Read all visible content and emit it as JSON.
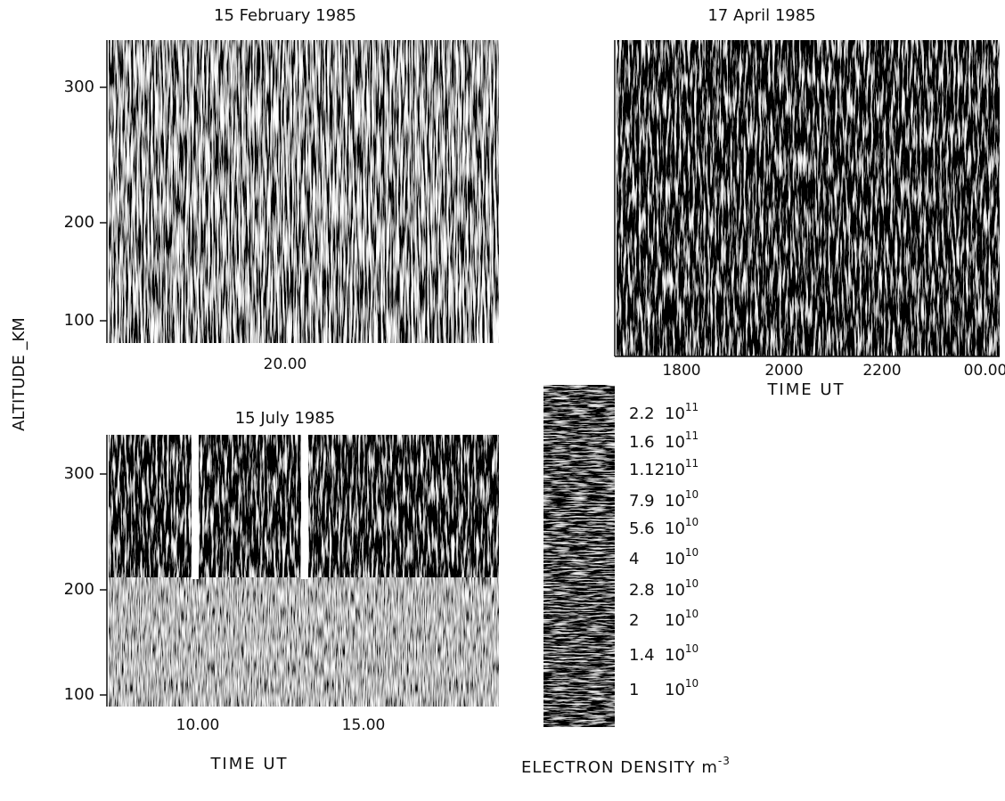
{
  "figure": {
    "y_label": "ALTITUDE _KM",
    "panels": [
      {
        "title": "15  February 1985",
        "yticks": [
          "300",
          "200",
          "100"
        ],
        "xticks": [
          "20.00"
        ]
      },
      {
        "title": "17  April  1985",
        "yticks": [],
        "xticks": [
          "1800",
          "2000",
          "2200",
          "00.00"
        ],
        "x_label": "TIME UT"
      },
      {
        "title": "15  July 1985",
        "yticks": [
          "300",
          "200",
          "100"
        ],
        "xticks": [
          "10.00",
          "15.00"
        ],
        "x_label": "TIME UT"
      }
    ],
    "colorbar": {
      "levels": [
        {
          "mantissa": "2.2",
          "power": "10",
          "exponent": "11"
        },
        {
          "mantissa": "1.6",
          "power": "10",
          "exponent": "11"
        },
        {
          "mantissa": "1.12",
          "power": "10",
          "exponent": "11"
        },
        {
          "mantissa": "7.9",
          "power": "10",
          "exponent": "10"
        },
        {
          "mantissa": "5.6",
          "power": "10",
          "exponent": "10"
        },
        {
          "mantissa": "4",
          "power": "10",
          "exponent": "10"
        },
        {
          "mantissa": "2.8",
          "power": "10",
          "exponent": "10"
        },
        {
          "mantissa": "2",
          "power": "10",
          "exponent": "10"
        },
        {
          "mantissa": "1.4",
          "power": "10",
          "exponent": "10"
        },
        {
          "mantissa": "1",
          "power": "10",
          "exponent": "10"
        }
      ],
      "label": "ELECTRON DENSITY  m",
      "label_exponent": "-3"
    }
  }
}
